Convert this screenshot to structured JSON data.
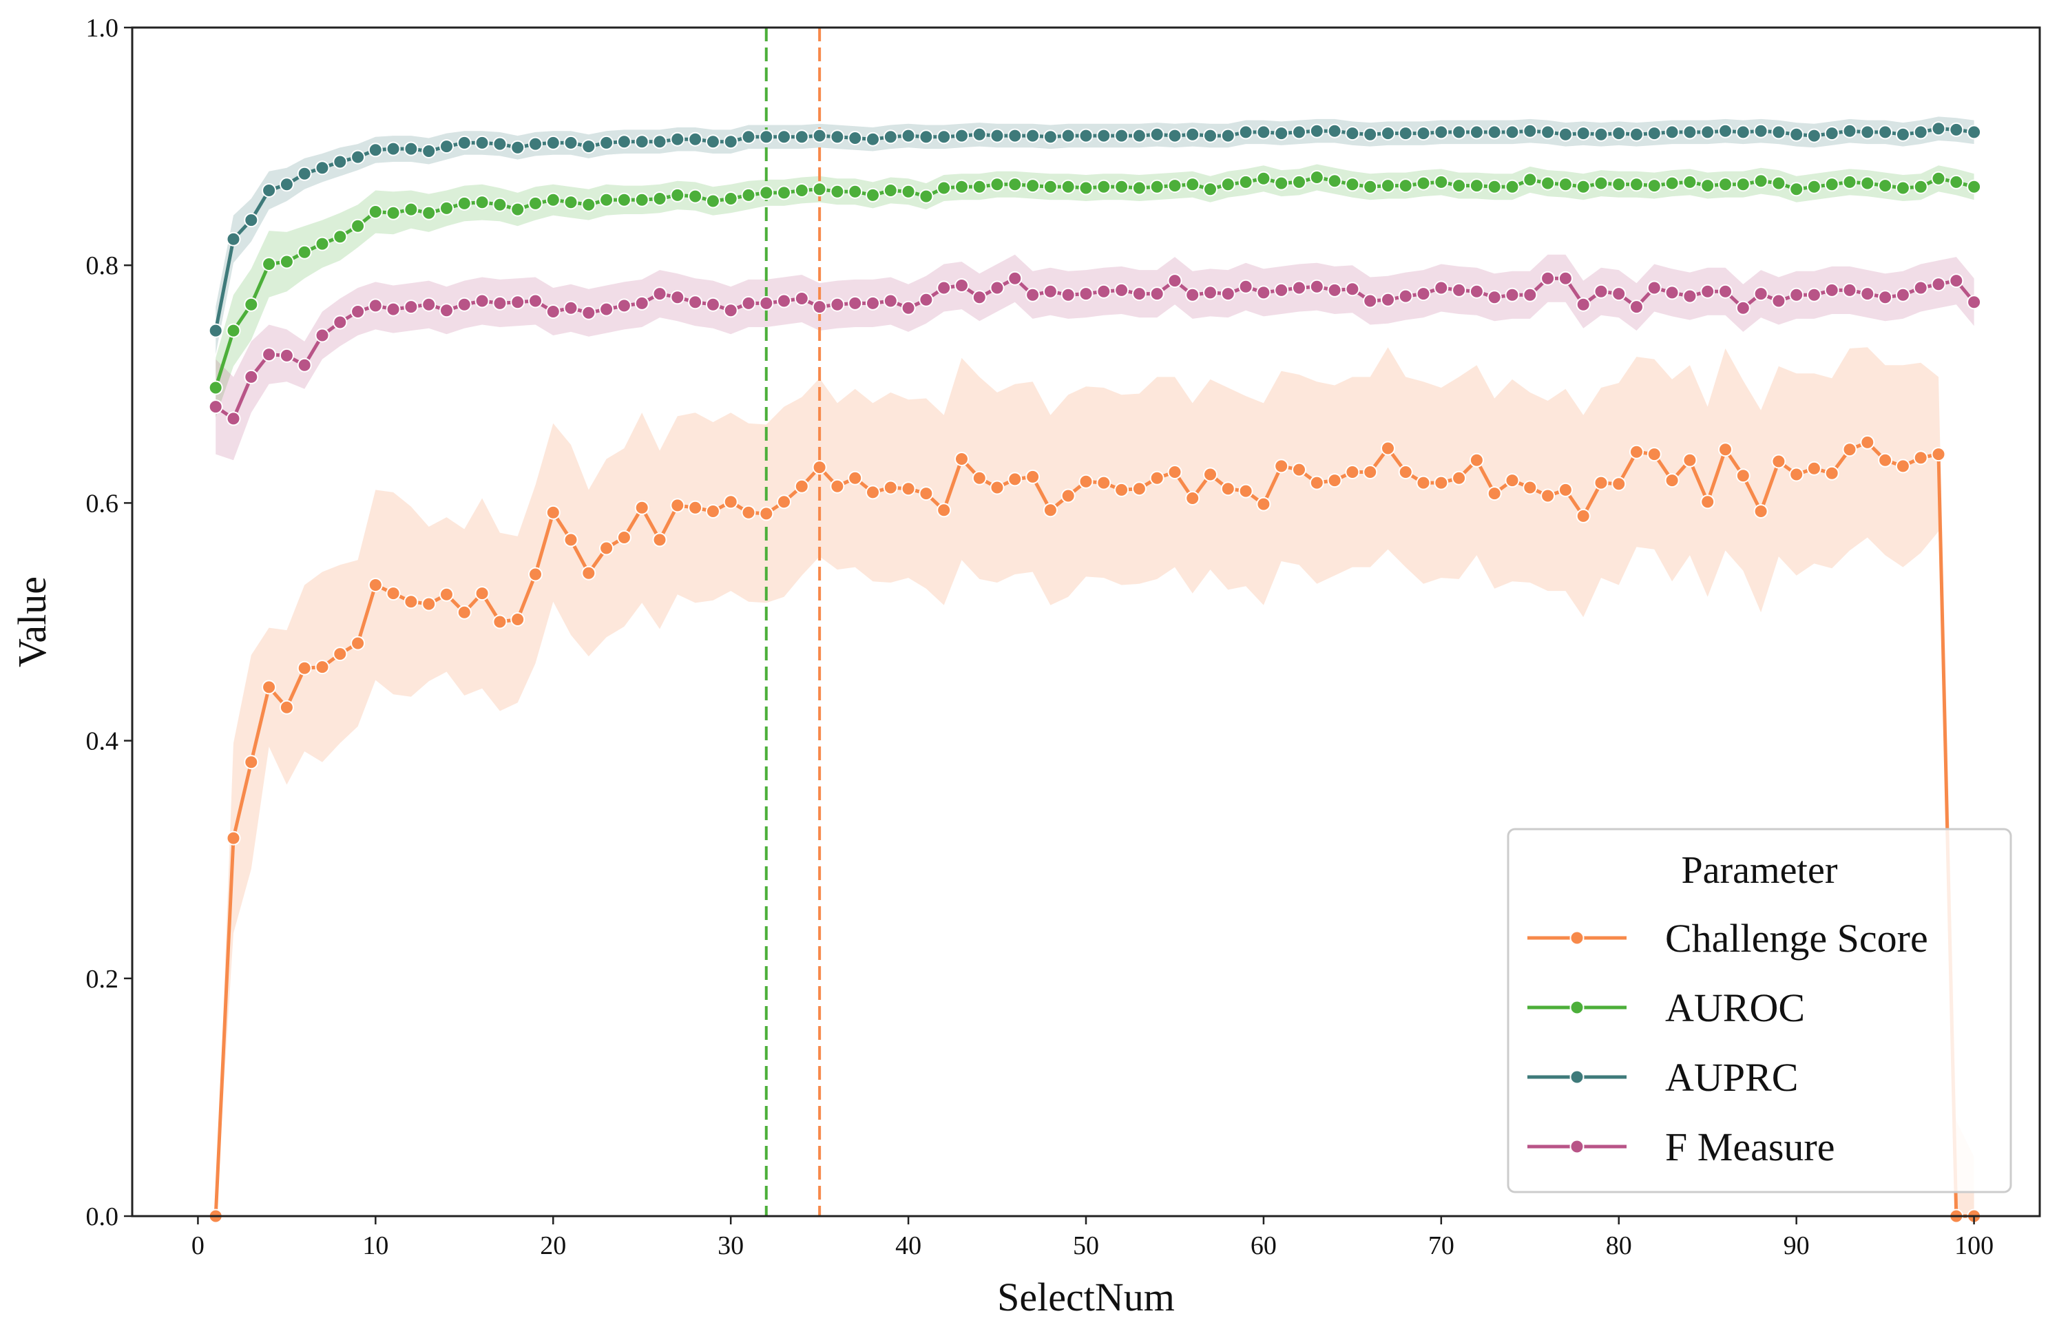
{
  "chart_data": {
    "type": "line",
    "title": "",
    "xlabel": "SelectNum",
    "ylabel": "Value",
    "xlim": [
      -3.7,
      103.7
    ],
    "ylim": [
      0.0,
      1.0
    ],
    "x_ticks": [
      0,
      10,
      20,
      30,
      40,
      50,
      60,
      70,
      80,
      90,
      100
    ],
    "y_ticks": [
      0.0,
      0.2,
      0.4,
      0.6,
      0.8,
      1.0
    ],
    "x_tick_labels": [
      "0",
      "10",
      "20",
      "30",
      "40",
      "50",
      "60",
      "70",
      "80",
      "90",
      "100"
    ],
    "y_tick_labels": [
      "0.0",
      "0.2",
      "0.4",
      "0.6",
      "0.8",
      "1.0"
    ],
    "grid": false,
    "legend": {
      "title": "Parameter",
      "position": "lower-right"
    },
    "vlines": [
      {
        "x": 32,
        "color": "#4caf3a",
        "style": "dashed",
        "series": "AUROC"
      },
      {
        "x": 35,
        "color": "#f7894a",
        "style": "dashed",
        "series": "Challenge Score"
      }
    ],
    "x": [
      1,
      2,
      3,
      4,
      5,
      6,
      7,
      8,
      9,
      10,
      11,
      12,
      13,
      14,
      15,
      16,
      17,
      18,
      19,
      20,
      21,
      22,
      23,
      24,
      25,
      26,
      27,
      28,
      29,
      30,
      31,
      32,
      33,
      34,
      35,
      36,
      37,
      38,
      39,
      40,
      41,
      42,
      43,
      44,
      45,
      46,
      47,
      48,
      49,
      50,
      51,
      52,
      53,
      54,
      55,
      56,
      57,
      58,
      59,
      60,
      61,
      62,
      63,
      64,
      65,
      66,
      67,
      68,
      69,
      70,
      71,
      72,
      73,
      74,
      75,
      76,
      77,
      78,
      79,
      80,
      81,
      82,
      83,
      84,
      85,
      86,
      87,
      88,
      89,
      90,
      91,
      92,
      93,
      94,
      95,
      96,
      97,
      98,
      99,
      100
    ],
    "series": [
      {
        "name": "Challenge Score",
        "color": "#f7894a",
        "band_half_width": [
          0.0,
          0.08,
          0.09,
          0.05,
          0.065,
          0.07,
          0.08,
          0.075,
          0.07,
          0.08,
          0.085,
          0.08,
          0.065,
          0.065,
          0.07,
          0.08,
          0.075,
          0.07,
          0.075,
          0.075,
          0.08,
          0.07,
          0.075,
          0.075,
          0.08,
          0.075,
          0.075,
          0.08,
          0.075,
          0.075,
          0.075,
          0.075,
          0.08,
          0.075,
          0.075,
          0.07,
          0.075,
          0.075,
          0.08,
          0.075,
          0.08,
          0.08,
          0.085,
          0.085,
          0.08,
          0.08,
          0.08,
          0.08,
          0.085,
          0.08,
          0.08,
          0.08,
          0.08,
          0.085,
          0.08,
          0.08,
          0.08,
          0.085,
          0.08,
          0.085,
          0.08,
          0.08,
          0.085,
          0.08,
          0.08,
          0.08,
          0.085,
          0.08,
          0.085,
          0.08,
          0.085,
          0.08,
          0.08,
          0.085,
          0.08,
          0.08,
          0.085,
          0.085,
          0.08,
          0.085,
          0.08,
          0.08,
          0.085,
          0.08,
          0.08,
          0.085,
          0.08,
          0.085,
          0.08,
          0.085,
          0.08,
          0.08,
          0.085,
          0.08,
          0.08,
          0.085,
          0.08,
          0.065,
          0.08,
          0.05
        ],
        "values": [
          0.0,
          0.318,
          0.382,
          0.445,
          0.428,
          0.461,
          0.462,
          0.473,
          0.482,
          0.531,
          0.524,
          0.517,
          0.515,
          0.523,
          0.508,
          0.524,
          0.5,
          0.502,
          0.54,
          0.592,
          0.569,
          0.541,
          0.562,
          0.571,
          0.596,
          0.569,
          0.598,
          0.596,
          0.593,
          0.601,
          0.592,
          0.591,
          0.601,
          0.614,
          0.63,
          0.614,
          0.621,
          0.609,
          0.613,
          0.612,
          0.608,
          0.594,
          0.637,
          0.621,
          0.613,
          0.62,
          0.622,
          0.594,
          0.606,
          0.618,
          0.617,
          0.611,
          0.612,
          0.621,
          0.626,
          0.604,
          0.624,
          0.612,
          0.61,
          0.599,
          0.631,
          0.628,
          0.617,
          0.619,
          0.626,
          0.626,
          0.646,
          0.626,
          0.617,
          0.617,
          0.621,
          0.636,
          0.608,
          0.619,
          0.613,
          0.606,
          0.611,
          0.589,
          0.617,
          0.616,
          0.643,
          0.641,
          0.619,
          0.636,
          0.601,
          0.645,
          0.623,
          0.593,
          0.635,
          0.624,
          0.629,
          0.625,
          0.645,
          0.651,
          0.636,
          0.631,
          0.638,
          0.641,
          0.0,
          0.0
        ]
      },
      {
        "name": "AUROC",
        "color": "#4caf3a",
        "band_half_width": [
          0.025,
          0.03,
          0.03,
          0.028,
          0.025,
          0.022,
          0.02,
          0.02,
          0.018,
          0.018,
          0.018,
          0.016,
          0.016,
          0.015,
          0.015,
          0.015,
          0.014,
          0.014,
          0.014,
          0.013,
          0.013,
          0.013,
          0.013,
          0.012,
          0.012,
          0.012,
          0.012,
          0.012,
          0.012,
          0.012,
          0.012,
          0.011,
          0.011,
          0.011,
          0.011,
          0.011,
          0.011,
          0.011,
          0.011,
          0.011,
          0.011,
          0.011,
          0.011,
          0.011,
          0.011,
          0.011,
          0.011,
          0.011,
          0.011,
          0.011,
          0.011,
          0.011,
          0.011,
          0.011,
          0.011,
          0.011,
          0.011,
          0.011,
          0.011,
          0.011,
          0.011,
          0.011,
          0.011,
          0.011,
          0.011,
          0.011,
          0.011,
          0.011,
          0.011,
          0.011,
          0.011,
          0.011,
          0.011,
          0.011,
          0.011,
          0.011,
          0.011,
          0.011,
          0.011,
          0.011,
          0.011,
          0.011,
          0.011,
          0.011,
          0.011,
          0.011,
          0.011,
          0.011,
          0.011,
          0.011,
          0.011,
          0.011,
          0.011,
          0.011,
          0.011,
          0.011,
          0.011,
          0.011,
          0.011,
          0.011
        ],
        "values": [
          0.697,
          0.745,
          0.767,
          0.801,
          0.803,
          0.811,
          0.818,
          0.824,
          0.833,
          0.845,
          0.844,
          0.847,
          0.844,
          0.848,
          0.852,
          0.853,
          0.851,
          0.847,
          0.852,
          0.855,
          0.853,
          0.851,
          0.855,
          0.855,
          0.855,
          0.856,
          0.859,
          0.858,
          0.854,
          0.856,
          0.859,
          0.861,
          0.861,
          0.863,
          0.864,
          0.862,
          0.862,
          0.859,
          0.863,
          0.862,
          0.858,
          0.865,
          0.866,
          0.866,
          0.868,
          0.868,
          0.867,
          0.866,
          0.866,
          0.865,
          0.866,
          0.866,
          0.865,
          0.866,
          0.867,
          0.868,
          0.864,
          0.868,
          0.87,
          0.873,
          0.869,
          0.87,
          0.874,
          0.871,
          0.868,
          0.866,
          0.867,
          0.867,
          0.869,
          0.87,
          0.867,
          0.867,
          0.866,
          0.866,
          0.872,
          0.869,
          0.868,
          0.866,
          0.869,
          0.868,
          0.868,
          0.867,
          0.869,
          0.87,
          0.867,
          0.868,
          0.868,
          0.871,
          0.869,
          0.864,
          0.866,
          0.868,
          0.87,
          0.869,
          0.867,
          0.865,
          0.866,
          0.873,
          0.87,
          0.866
        ]
      },
      {
        "name": "AUPRC",
        "color": "#3e7a7a",
        "band_half_width": [
          0.02,
          0.02,
          0.018,
          0.016,
          0.014,
          0.013,
          0.012,
          0.012,
          0.011,
          0.011,
          0.011,
          0.011,
          0.011,
          0.011,
          0.01,
          0.01,
          0.01,
          0.01,
          0.01,
          0.01,
          0.01,
          0.01,
          0.01,
          0.01,
          0.01,
          0.01,
          0.01,
          0.01,
          0.01,
          0.01,
          0.01,
          0.01,
          0.01,
          0.01,
          0.01,
          0.01,
          0.01,
          0.01,
          0.01,
          0.01,
          0.01,
          0.01,
          0.01,
          0.01,
          0.01,
          0.01,
          0.01,
          0.01,
          0.01,
          0.01,
          0.01,
          0.01,
          0.01,
          0.01,
          0.01,
          0.01,
          0.01,
          0.01,
          0.01,
          0.01,
          0.01,
          0.01,
          0.01,
          0.01,
          0.01,
          0.01,
          0.01,
          0.01,
          0.01,
          0.01,
          0.01,
          0.01,
          0.01,
          0.01,
          0.01,
          0.01,
          0.01,
          0.01,
          0.01,
          0.01,
          0.01,
          0.01,
          0.01,
          0.01,
          0.01,
          0.01,
          0.01,
          0.01,
          0.01,
          0.01,
          0.01,
          0.01,
          0.01,
          0.01,
          0.01,
          0.01,
          0.01,
          0.01,
          0.01,
          0.01
        ],
        "values": [
          0.745,
          0.822,
          0.838,
          0.863,
          0.868,
          0.877,
          0.882,
          0.887,
          0.891,
          0.897,
          0.898,
          0.898,
          0.896,
          0.9,
          0.903,
          0.903,
          0.902,
          0.899,
          0.902,
          0.903,
          0.903,
          0.9,
          0.903,
          0.904,
          0.904,
          0.904,
          0.906,
          0.906,
          0.904,
          0.904,
          0.908,
          0.908,
          0.908,
          0.908,
          0.909,
          0.908,
          0.907,
          0.906,
          0.908,
          0.909,
          0.908,
          0.908,
          0.909,
          0.91,
          0.909,
          0.909,
          0.909,
          0.908,
          0.909,
          0.909,
          0.909,
          0.909,
          0.909,
          0.91,
          0.909,
          0.91,
          0.909,
          0.909,
          0.912,
          0.912,
          0.911,
          0.912,
          0.913,
          0.913,
          0.911,
          0.91,
          0.911,
          0.911,
          0.911,
          0.912,
          0.912,
          0.912,
          0.912,
          0.912,
          0.913,
          0.912,
          0.91,
          0.911,
          0.91,
          0.911,
          0.91,
          0.911,
          0.912,
          0.912,
          0.912,
          0.913,
          0.912,
          0.913,
          0.912,
          0.91,
          0.909,
          0.911,
          0.913,
          0.912,
          0.912,
          0.91,
          0.912,
          0.915,
          0.914,
          0.912
        ]
      },
      {
        "name": "F Measure",
        "color": "#b85487",
        "band_half_width": [
          0.04,
          0.035,
          0.03,
          0.025,
          0.022,
          0.02,
          0.02,
          0.02,
          0.02,
          0.02,
          0.02,
          0.02,
          0.02,
          0.02,
          0.02,
          0.02,
          0.02,
          0.02,
          0.02,
          0.02,
          0.02,
          0.02,
          0.02,
          0.02,
          0.02,
          0.02,
          0.02,
          0.02,
          0.02,
          0.02,
          0.02,
          0.02,
          0.02,
          0.02,
          0.02,
          0.02,
          0.02,
          0.02,
          0.02,
          0.02,
          0.02,
          0.02,
          0.02,
          0.02,
          0.02,
          0.02,
          0.02,
          0.02,
          0.02,
          0.02,
          0.02,
          0.02,
          0.02,
          0.02,
          0.02,
          0.02,
          0.02,
          0.02,
          0.02,
          0.02,
          0.02,
          0.02,
          0.02,
          0.02,
          0.02,
          0.02,
          0.02,
          0.02,
          0.02,
          0.02,
          0.02,
          0.02,
          0.02,
          0.02,
          0.02,
          0.02,
          0.02,
          0.02,
          0.02,
          0.02,
          0.02,
          0.02,
          0.02,
          0.02,
          0.02,
          0.02,
          0.02,
          0.02,
          0.02,
          0.02,
          0.02,
          0.02,
          0.02,
          0.02,
          0.02,
          0.02,
          0.02,
          0.02,
          0.02,
          0.02
        ],
        "values": [
          0.681,
          0.671,
          0.706,
          0.725,
          0.724,
          0.716,
          0.741,
          0.752,
          0.761,
          0.766,
          0.763,
          0.765,
          0.767,
          0.762,
          0.767,
          0.77,
          0.768,
          0.769,
          0.77,
          0.761,
          0.764,
          0.76,
          0.763,
          0.766,
          0.768,
          0.776,
          0.773,
          0.769,
          0.767,
          0.762,
          0.768,
          0.768,
          0.77,
          0.772,
          0.765,
          0.767,
          0.768,
          0.768,
          0.77,
          0.764,
          0.771,
          0.781,
          0.783,
          0.773,
          0.781,
          0.789,
          0.775,
          0.778,
          0.775,
          0.776,
          0.778,
          0.779,
          0.776,
          0.776,
          0.787,
          0.775,
          0.777,
          0.776,
          0.782,
          0.777,
          0.779,
          0.781,
          0.782,
          0.779,
          0.78,
          0.77,
          0.771,
          0.774,
          0.776,
          0.781,
          0.779,
          0.778,
          0.773,
          0.775,
          0.775,
          0.789,
          0.789,
          0.767,
          0.778,
          0.776,
          0.765,
          0.781,
          0.777,
          0.774,
          0.778,
          0.778,
          0.764,
          0.776,
          0.77,
          0.775,
          0.775,
          0.779,
          0.779,
          0.776,
          0.773,
          0.775,
          0.781,
          0.784,
          0.787,
          0.769
        ]
      }
    ]
  }
}
